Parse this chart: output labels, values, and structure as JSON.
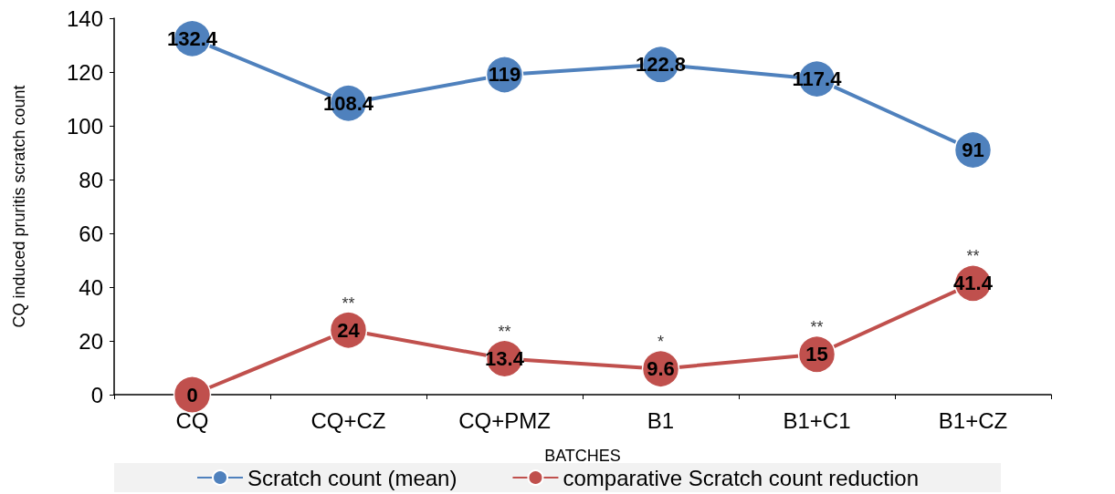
{
  "chart_data": {
    "type": "line",
    "xlabel": "BATCHES",
    "ylabel": "CQ induced pruritis scratch count",
    "categories": [
      "CQ",
      "CQ+CZ",
      "CQ+PMZ",
      "B1",
      "B1+C1",
      "B1+CZ"
    ],
    "series": [
      {
        "name": "Scratch count (mean)",
        "color": "#4f81bd",
        "values": [
          132.4,
          108.4,
          119,
          122.8,
          117.4,
          91
        ]
      },
      {
        "name": "comparative Scratch count reduction",
        "color": "#c0504d",
        "values": [
          0,
          24,
          13.4,
          9.6,
          15,
          41.4
        ]
      }
    ],
    "ylim": [
      0,
      140
    ],
    "yticks": [
      0,
      20,
      40,
      60,
      80,
      100,
      120,
      140
    ],
    "grid": false,
    "legend": "bottom",
    "marker": "circle",
    "line_style": "solid",
    "data_labels": true,
    "annotations": [
      {
        "text": "**",
        "x": "CQ+CZ",
        "y": 24
      },
      {
        "text": "**",
        "x": "CQ+PMZ",
        "y": 13.4
      },
      {
        "text": "*",
        "x": "B1",
        "y": 9.6
      },
      {
        "text": "**",
        "x": "B1+C1",
        "y": 15
      },
      {
        "text": "**",
        "x": "B1+CZ",
        "y": 41.4
      }
    ]
  }
}
